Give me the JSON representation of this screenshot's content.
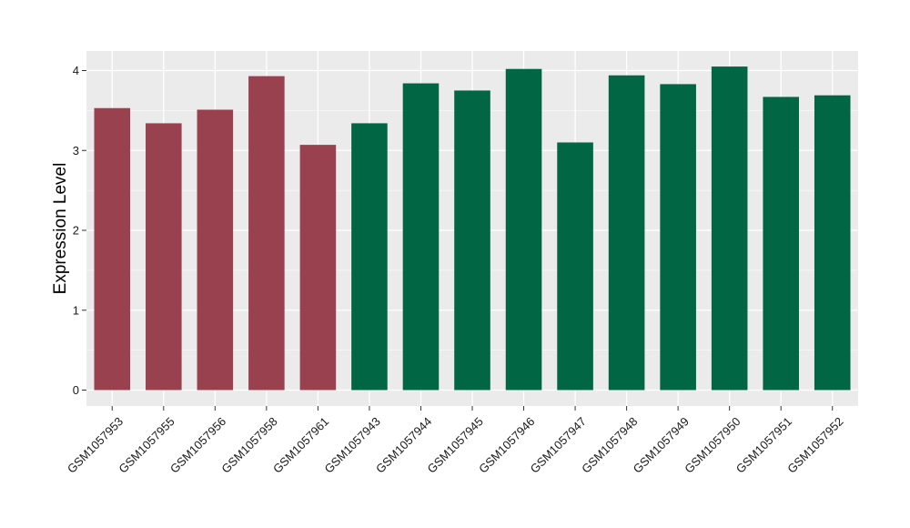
{
  "chart_data": {
    "type": "bar",
    "ylabel": "Expression Level",
    "ylim": [
      0,
      4.2
    ],
    "yticks": [
      "0",
      "1",
      "2",
      "3",
      "4"
    ],
    "categories": [
      "GSM1057953",
      "GSM1057955",
      "GSM1057956",
      "GSM1057958",
      "GSM1057961",
      "GSM1057943",
      "GSM1057944",
      "GSM1057945",
      "GSM1057946",
      "GSM1057947",
      "GSM1057948",
      "GSM1057949",
      "GSM1057950",
      "GSM1057951",
      "GSM1057952"
    ],
    "values": [
      3.53,
      3.34,
      3.51,
      3.93,
      3.07,
      3.34,
      3.84,
      3.75,
      4.02,
      3.1,
      3.94,
      3.83,
      4.05,
      3.67,
      3.69
    ],
    "bar_colors": [
      "#9a4150",
      "#9a4150",
      "#9a4150",
      "#9a4150",
      "#9a4150",
      "#006644",
      "#006644",
      "#006644",
      "#006644",
      "#006644",
      "#006644",
      "#006644",
      "#006644",
      "#006644",
      "#006644"
    ],
    "panel_color": "#ebebeb",
    "grid": true
  }
}
